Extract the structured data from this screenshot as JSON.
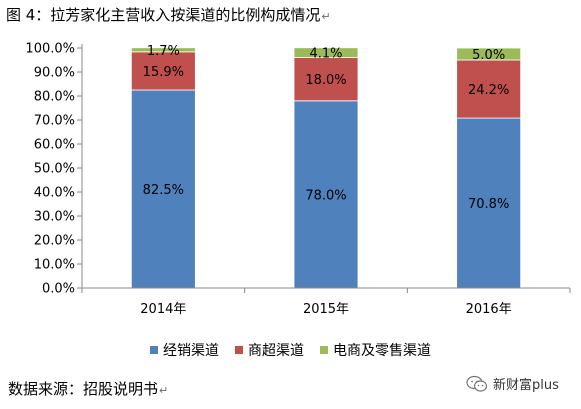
{
  "title": "图 4：拉芳家化主营收入按渠道的比例构成情况",
  "title_mark": "↵",
  "chart_data": {
    "type": "bar",
    "stacked": true,
    "categories": [
      "2014年",
      "2015年",
      "2016年"
    ],
    "series": [
      {
        "name": "经销渠道",
        "values": [
          82.5,
          78.0,
          70.8
        ],
        "labels": [
          "82.5%",
          "78.0%",
          "70.8%"
        ],
        "color": "#4f81bd"
      },
      {
        "name": "商超渠道",
        "values": [
          15.9,
          18.0,
          24.2
        ],
        "labels": [
          "15.9%",
          "18.0%",
          "24.2%"
        ],
        "color": "#c0504d"
      },
      {
        "name": "电商及零售渠道",
        "values": [
          1.7,
          4.1,
          5.0
        ],
        "labels": [
          "1.7%",
          "4.1%",
          "5.0%"
        ],
        "color": "#9bbb59"
      }
    ],
    "ylim": [
      0,
      100
    ],
    "yticks": [
      0,
      10,
      20,
      30,
      40,
      50,
      60,
      70,
      80,
      90,
      100
    ],
    "ytick_labels": [
      "0.0%",
      "10.0%",
      "20.0%",
      "30.0%",
      "40.0%",
      "50.0%",
      "60.0%",
      "70.0%",
      "80.0%",
      "90.0%",
      "100.0%"
    ],
    "xlabel": "",
    "ylabel": "",
    "grid": false,
    "legend_position": "bottom"
  },
  "source": "数据来源：招股说明书",
  "source_mark": "↵",
  "watermark": {
    "text": "新财富plus",
    "icon": "wechat-icon"
  }
}
